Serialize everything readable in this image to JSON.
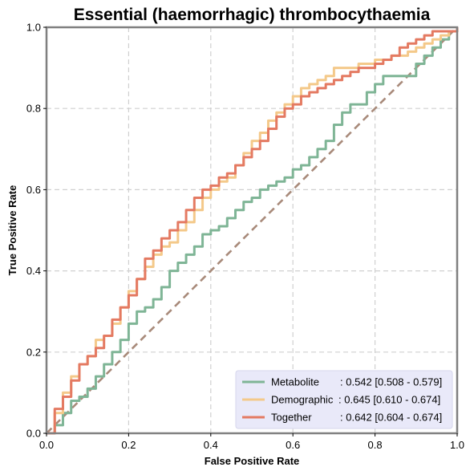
{
  "chart_data": {
    "type": "line",
    "title": "Essential (haemorrhagic) thrombocythaemia",
    "xlabel": "False Positive Rate",
    "ylabel": "True Positive Rate",
    "xlim": [
      0.0,
      1.0
    ],
    "ylim": [
      0.0,
      1.0
    ],
    "x_ticks": [
      "0.0",
      "0.2",
      "0.4",
      "0.6",
      "0.8",
      "1.0"
    ],
    "y_ticks": [
      "0.0",
      "0.2",
      "0.4",
      "0.6",
      "0.8",
      "1.0"
    ],
    "grid": true,
    "legend_position": "bottom-right",
    "reference_line": {
      "color": "#a88a7a",
      "style": "dashed",
      "x": [
        0.0,
        1.0
      ],
      "y": [
        0.0,
        1.0
      ]
    },
    "series": [
      {
        "name": "Metabolite",
        "auc_label": ": 0.542 [0.508 - 0.579]",
        "color": "#7fb596",
        "x": [
          0.0,
          0.02,
          0.04,
          0.06,
          0.08,
          0.1,
          0.12,
          0.14,
          0.16,
          0.18,
          0.2,
          0.22,
          0.24,
          0.26,
          0.28,
          0.3,
          0.32,
          0.34,
          0.36,
          0.38,
          0.4,
          0.42,
          0.44,
          0.46,
          0.48,
          0.5,
          0.52,
          0.54,
          0.56,
          0.58,
          0.6,
          0.62,
          0.64,
          0.66,
          0.68,
          0.7,
          0.72,
          0.74,
          0.76,
          0.78,
          0.8,
          0.82,
          0.84,
          0.86,
          0.88,
          0.9,
          0.92,
          0.94,
          0.96,
          0.98,
          1.0
        ],
        "y": [
          0.0,
          0.02,
          0.05,
          0.08,
          0.09,
          0.11,
          0.14,
          0.17,
          0.2,
          0.23,
          0.27,
          0.3,
          0.31,
          0.33,
          0.36,
          0.4,
          0.42,
          0.44,
          0.46,
          0.49,
          0.5,
          0.51,
          0.53,
          0.55,
          0.57,
          0.58,
          0.6,
          0.61,
          0.62,
          0.63,
          0.65,
          0.66,
          0.68,
          0.7,
          0.72,
          0.76,
          0.79,
          0.81,
          0.81,
          0.84,
          0.86,
          0.88,
          0.88,
          0.88,
          0.88,
          0.91,
          0.93,
          0.95,
          0.97,
          0.99,
          1.0
        ]
      },
      {
        "name": "Demographic",
        "auc_label": ": 0.645 [0.610 - 0.674]",
        "color": "#f4c98a",
        "x": [
          0.0,
          0.02,
          0.04,
          0.06,
          0.08,
          0.1,
          0.12,
          0.14,
          0.16,
          0.18,
          0.2,
          0.22,
          0.24,
          0.26,
          0.28,
          0.3,
          0.32,
          0.34,
          0.36,
          0.38,
          0.4,
          0.42,
          0.44,
          0.46,
          0.48,
          0.5,
          0.52,
          0.54,
          0.56,
          0.58,
          0.6,
          0.62,
          0.64,
          0.66,
          0.68,
          0.7,
          0.72,
          0.74,
          0.76,
          0.78,
          0.8,
          0.82,
          0.84,
          0.86,
          0.88,
          0.9,
          0.92,
          0.94,
          0.96,
          0.98,
          1.0
        ],
        "y": [
          0.0,
          0.05,
          0.1,
          0.14,
          0.17,
          0.19,
          0.23,
          0.24,
          0.27,
          0.31,
          0.35,
          0.38,
          0.41,
          0.44,
          0.46,
          0.47,
          0.5,
          0.52,
          0.55,
          0.58,
          0.6,
          0.62,
          0.63,
          0.66,
          0.69,
          0.72,
          0.74,
          0.77,
          0.79,
          0.81,
          0.83,
          0.85,
          0.86,
          0.87,
          0.88,
          0.9,
          0.9,
          0.9,
          0.91,
          0.91,
          0.92,
          0.92,
          0.93,
          0.93,
          0.94,
          0.95,
          0.96,
          0.97,
          0.98,
          0.99,
          1.0
        ]
      },
      {
        "name": "Together",
        "auc_label": ": 0.642 [0.604 - 0.674]",
        "color": "#e47a62",
        "x": [
          0.0,
          0.02,
          0.04,
          0.06,
          0.08,
          0.1,
          0.12,
          0.14,
          0.16,
          0.18,
          0.2,
          0.22,
          0.24,
          0.26,
          0.28,
          0.3,
          0.32,
          0.34,
          0.36,
          0.38,
          0.4,
          0.42,
          0.44,
          0.46,
          0.48,
          0.5,
          0.52,
          0.54,
          0.56,
          0.58,
          0.6,
          0.62,
          0.64,
          0.66,
          0.68,
          0.7,
          0.72,
          0.74,
          0.76,
          0.78,
          0.8,
          0.82,
          0.84,
          0.86,
          0.88,
          0.9,
          0.92,
          0.94,
          0.96,
          0.98,
          1.0
        ],
        "y": [
          0.0,
          0.06,
          0.09,
          0.13,
          0.17,
          0.19,
          0.21,
          0.24,
          0.28,
          0.31,
          0.34,
          0.38,
          0.43,
          0.45,
          0.48,
          0.5,
          0.52,
          0.55,
          0.58,
          0.6,
          0.61,
          0.63,
          0.64,
          0.66,
          0.68,
          0.7,
          0.72,
          0.75,
          0.78,
          0.8,
          0.81,
          0.83,
          0.84,
          0.85,
          0.86,
          0.87,
          0.88,
          0.89,
          0.9,
          0.9,
          0.91,
          0.92,
          0.93,
          0.95,
          0.96,
          0.97,
          0.98,
          0.99,
          0.99,
          0.99,
          1.0
        ]
      }
    ]
  }
}
